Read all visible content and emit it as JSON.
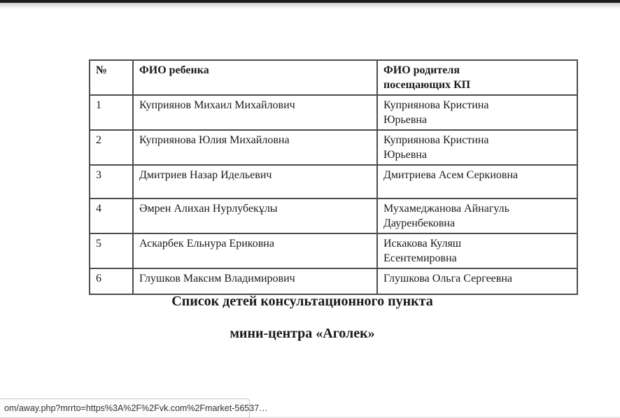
{
  "window": {
    "status_link": "om/away.php?mrrto=https%3A%2F%2Fvk.com%2Fmarket-56537…"
  },
  "table": {
    "headers": {
      "num": "№",
      "child": "ФИО ребенка",
      "parent": "ФИО родителя\nпосещающих КП"
    },
    "rows": [
      {
        "num": "1",
        "child": "Куприянов Михаил Михайлович",
        "parent": "Куприянова Кристина\nЮрьевна"
      },
      {
        "num": "2",
        "child": "Куприянова Юлия Михайловна",
        "parent": "Куприянова Кристина\nЮрьевна"
      },
      {
        "num": "3",
        "child": "Дмитриев Назар Идельевич",
        "parent": "Дмитриева Асем Серкиовна"
      },
      {
        "num": "4",
        "child": "Әмрен Алихан Нурлубекұлы",
        "parent": "Мухамеджанова Айнагуль\nДауренбековна"
      },
      {
        "num": "5",
        "child": "Аскарбек Ельнура Ериковна",
        "parent": "Искакова Куляш\nЕсентемировна"
      },
      {
        "num": "6",
        "child": "Глушков Максим Владимирович",
        "parent": "Глушкова Ольга Сергеевна"
      }
    ]
  },
  "caption": {
    "line1": "Список детей консультационного пункта",
    "line2": "мини-центра «Аголек»"
  },
  "colors": {
    "table_border": "#4c4c4c",
    "top_bar": "#1c1c1c",
    "tooltip_bg": "#fcfcfc",
    "tooltip_border": "#c9c9c9",
    "text": "#1a1a1a"
  }
}
